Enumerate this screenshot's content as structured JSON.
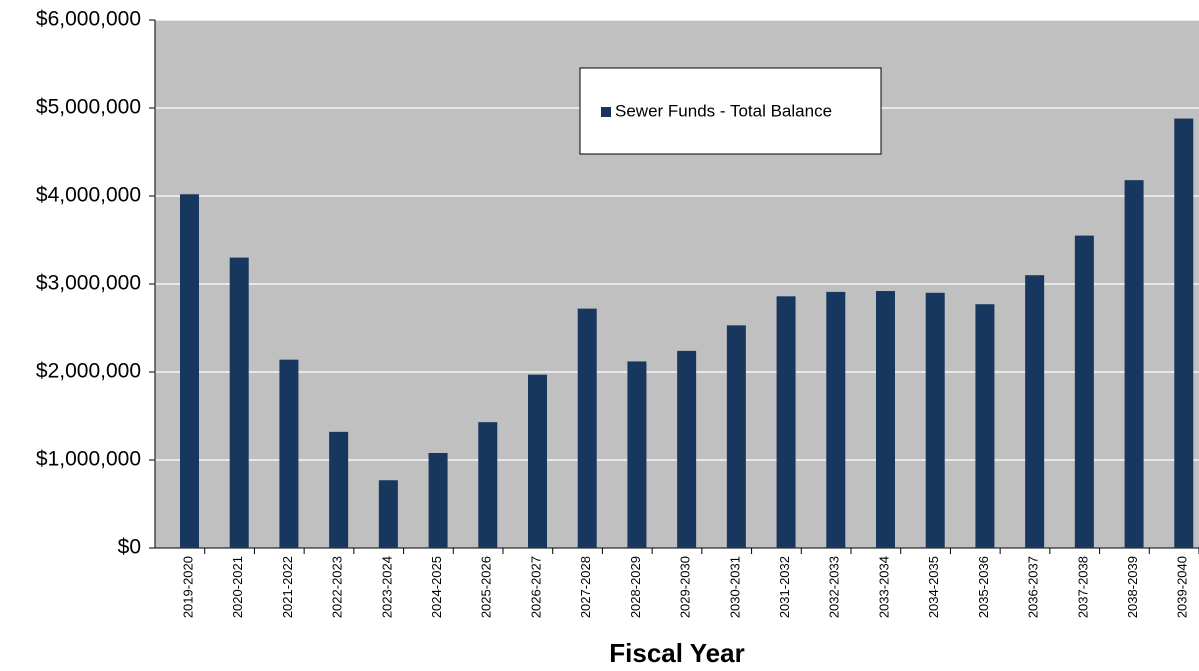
{
  "chart_data": {
    "type": "bar",
    "x_label": "Fiscal Year",
    "categories": [
      "2019-2020",
      "2020-2021",
      "2021-2022",
      "2022-2023",
      "2023-2024",
      "2024-2025",
      "2025-2026",
      "2026-2027",
      "2027-2028",
      "2028-2029",
      "2029-2030",
      "2030-2031",
      "2031-2032",
      "2032-2033",
      "2033-2034",
      "2034-2035",
      "2035-2036",
      "2036-2037",
      "2037-2038",
      "2038-2039",
      "2039-2040"
    ],
    "series": [
      {
        "name": "Sewer Funds - Total Balance",
        "color": "#17375e",
        "values": [
          4020000,
          3300000,
          2140000,
          1320000,
          770000,
          1080000,
          1430000,
          1970000,
          2720000,
          2120000,
          2240000,
          2530000,
          2860000,
          2910000,
          2920000,
          2900000,
          2770000,
          3100000,
          3550000,
          4180000,
          4880000
        ]
      }
    ],
    "ylim": [
      0,
      6000000
    ],
    "yticks": [
      {
        "value": 0,
        "label": "$0"
      },
      {
        "value": 1000000,
        "label": "$1,000,000"
      },
      {
        "value": 2000000,
        "label": "$2,000,000"
      },
      {
        "value": 3000000,
        "label": "$3,000,000"
      },
      {
        "value": 4000000,
        "label": "$4,000,000"
      },
      {
        "value": 5000000,
        "label": "$5,000,000"
      },
      {
        "value": 6000000,
        "label": "$6,000,000"
      }
    ],
    "grid": true,
    "legend": "top"
  }
}
